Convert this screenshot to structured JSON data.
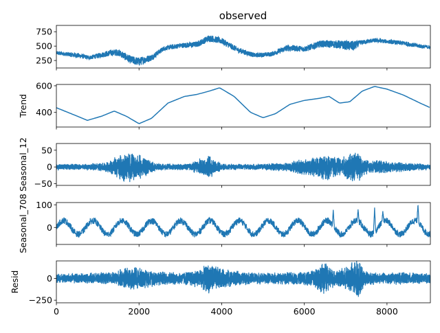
{
  "chart_data": {
    "type": "line",
    "title": "observed",
    "x_range": [
      0,
      9050
    ],
    "x_ticks": [
      0,
      2000,
      4000,
      6000,
      8000
    ],
    "x_tick_labels": [
      "0",
      "2000",
      "4000",
      "6000",
      "8000"
    ],
    "line_color": "#1f77b4",
    "grid": false,
    "panels": [
      {
        "key": "observed",
        "ylabel": "",
        "ylim": [
          120,
          860
        ],
        "y_ticks": [
          250,
          500,
          750
        ],
        "y_tick_labels": [
          "250",
          "500",
          "750"
        ],
        "trend_x": [
          0,
          500,
          800,
          1300,
          1500,
          1800,
          2000,
          2300,
          2600,
          3000,
          3400,
          3700,
          4000,
          4400,
          4800,
          5200,
          5600,
          6000,
          6400,
          6800,
          7200,
          7350,
          7700,
          8000,
          8400,
          8800,
          9050
        ],
        "trend_y": [
          380,
          340,
          300,
          380,
          390,
          260,
          230,
          300,
          460,
          510,
          530,
          640,
          590,
          430,
          340,
          360,
          470,
          450,
          540,
          530,
          500,
          560,
          600,
          580,
          550,
          500,
          480
        ],
        "noise": [
          30,
          45,
          35,
          55,
          60,
          70,
          75,
          55,
          40,
          45,
          50,
          60,
          55,
          50,
          40,
          40,
          55,
          50,
          60,
          70,
          90,
          40,
          35,
          35,
          40,
          35,
          30
        ]
      },
      {
        "key": "trend",
        "ylabel": "Trend",
        "ylim": [
          290,
          610
        ],
        "y_ticks": [
          400,
          600
        ],
        "y_tick_labels": [
          "400",
          "600"
        ],
        "x": [
          0,
          400,
          750,
          1100,
          1400,
          1700,
          2000,
          2300,
          2700,
          3100,
          3400,
          3700,
          3950,
          4300,
          4700,
          5000,
          5300,
          5650,
          6000,
          6350,
          6600,
          6850,
          7100,
          7400,
          7700,
          8000,
          8400,
          8800,
          9050
        ],
        "y": [
          435,
          385,
          340,
          372,
          410,
          370,
          315,
          355,
          470,
          520,
          535,
          560,
          585,
          520,
          400,
          360,
          390,
          460,
          490,
          505,
          520,
          470,
          480,
          560,
          595,
          575,
          530,
          470,
          435
        ]
      },
      {
        "key": "seasonal_12",
        "ylabel": "Seasonal_12",
        "ylim": [
          -55,
          70
        ],
        "y_ticks": [
          -50,
          0,
          50
        ],
        "y_tick_labels": [
          "−50",
          "0",
          "50"
        ],
        "env_x": [
          0,
          300,
          600,
          900,
          1200,
          1500,
          1700,
          1900,
          2100,
          2400,
          2800,
          3200,
          3500,
          3700,
          4000,
          4400,
          4800,
          5200,
          5600,
          5900,
          6200,
          6500,
          6600,
          6700,
          6900,
          7100,
          7250,
          7400,
          7600,
          7800,
          8100,
          8400,
          8700,
          9050
        ],
        "env_amp": [
          10,
          10,
          9,
          12,
          15,
          38,
          48,
          42,
          35,
          12,
          10,
          10,
          28,
          38,
          10,
          10,
          9,
          12,
          14,
          25,
          30,
          40,
          48,
          40,
          30,
          45,
          55,
          30,
          20,
          22,
          18,
          15,
          12,
          10
        ]
      },
      {
        "key": "seasonal_708",
        "ylabel": "Seasonal_708",
        "ylim": [
          -75,
          110
        ],
        "y_ticks": [
          0,
          100
        ],
        "y_tick_labels": [
          "0",
          "100"
        ],
        "period": 708,
        "amp": 30,
        "noise": 14,
        "spikes_x": [
          6700,
          7300,
          7700,
          7900,
          8750
        ],
        "spikes_y": [
          78,
          80,
          88,
          72,
          103
        ]
      },
      {
        "key": "resid",
        "ylabel": "Resid",
        "ylim": [
          -280,
          200
        ],
        "y_ticks": [
          -250,
          0
        ],
        "y_tick_labels": [
          "−250",
          "0"
        ],
        "env_x": [
          0,
          800,
          1400,
          1700,
          1900,
          2100,
          2500,
          3000,
          3500,
          3700,
          4000,
          4500,
          5000,
          5500,
          6000,
          6300,
          6500,
          6700,
          6950,
          7150,
          7300,
          7450,
          7800,
          8200,
          8600,
          9050
        ],
        "env_amp": [
          60,
          65,
          80,
          140,
          150,
          120,
          90,
          75,
          120,
          190,
          120,
          80,
          70,
          75,
          80,
          150,
          200,
          110,
          120,
          200,
          260,
          100,
          70,
          75,
          70,
          60
        ]
      }
    ]
  }
}
